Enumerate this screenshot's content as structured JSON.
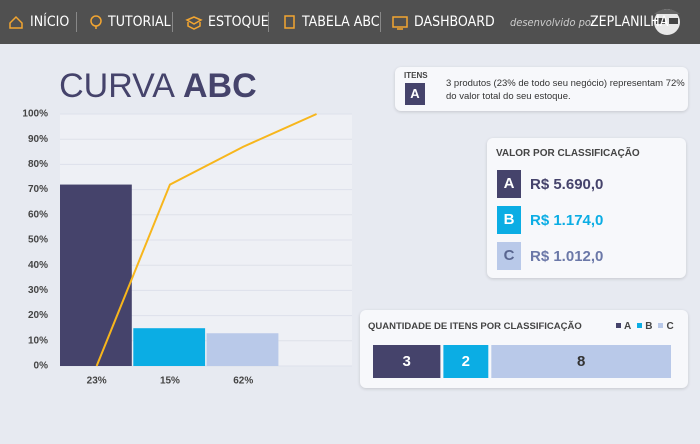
{
  "nav": {
    "items": [
      "INÍCIO",
      "TUTORIAL",
      "ESTOQUE",
      "TABELA ABC",
      "DASHBOARD"
    ],
    "credit": "desenvolvido por",
    "brand": "ZEPLANILHA"
  },
  "chart_data": {
    "type": "bar",
    "title": "CURVA",
    "title_emphasis": "ABC",
    "categories": [
      "23%",
      "15%",
      "62%"
    ],
    "values": [
      72,
      15,
      13
    ],
    "colors": [
      "#45436b",
      "#0badE4",
      "#b9c9e9"
    ],
    "line": {
      "color": "#f7b61c",
      "x": [
        0,
        1,
        2,
        3
      ],
      "values": [
        0,
        72,
        87,
        100
      ]
    },
    "ylim": [
      0,
      100
    ],
    "yticks": [
      {
        "value": 0,
        "label": "0%"
      },
      {
        "value": 10,
        "label": "10%"
      },
      {
        "value": 20,
        "label": "20%"
      },
      {
        "value": 30,
        "label": "30%"
      },
      {
        "value": 40,
        "label": "40%"
      },
      {
        "value": 50,
        "label": "50%"
      },
      {
        "value": 60,
        "label": "60%"
      },
      {
        "value": 70,
        "label": "70%"
      },
      {
        "value": 80,
        "label": "80%"
      },
      {
        "value": 90,
        "label": "90%"
      },
      {
        "value": 100,
        "label": "100%"
      }
    ],
    "grid": true
  },
  "itens": {
    "label": "ITENS",
    "letter": "A",
    "text": "3 produtos (23% de todo seu negócio) representam 72% do valor total do seu estoque."
  },
  "valor": {
    "title": "VALOR POR CLASSIFICAÇÃO",
    "rows": [
      {
        "letter": "A",
        "value": "R$ 5.690,0"
      },
      {
        "letter": "B",
        "value": "R$ 1.174,0"
      },
      {
        "letter": "C",
        "value": "R$ 1.012,0"
      }
    ]
  },
  "quantidade": {
    "title": "QUANTIDADE DE ITENS POR CLASSIFICAÇÃO",
    "legend": [
      "A",
      "B",
      "C"
    ],
    "counts": [
      3,
      2,
      8
    ]
  }
}
